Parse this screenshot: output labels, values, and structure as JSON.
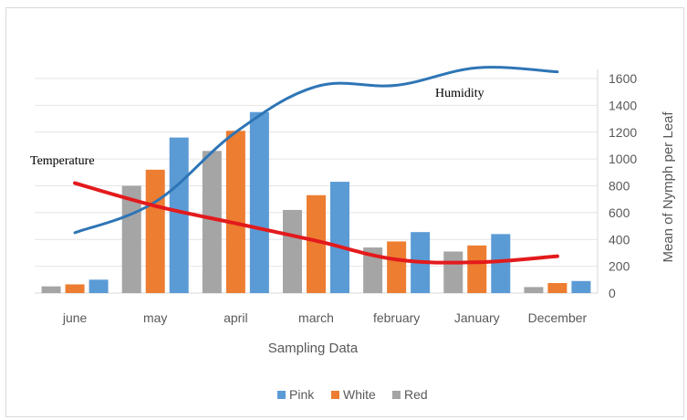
{
  "chart_data": {
    "type": "bar",
    "categories": [
      "june",
      "may",
      "april",
      "march",
      "february",
      "January",
      "December"
    ],
    "series": [
      {
        "name": "Red",
        "color": "#a5a5a5",
        "values": [
          50,
          800,
          1060,
          620,
          340,
          310,
          45
        ]
      },
      {
        "name": "White",
        "color": "#ed7d31",
        "values": [
          65,
          920,
          1210,
          730,
          385,
          355,
          75
        ]
      },
      {
        "name": "Pink",
        "color": "#5b9bd5",
        "values": [
          100,
          1160,
          1350,
          830,
          455,
          440,
          90
        ]
      }
    ],
    "lines": [
      {
        "label": "Humidity",
        "color": "#2e75b6",
        "values": [
          450,
          680,
          1200,
          1540,
          1550,
          1680,
          1650
        ]
      },
      {
        "label": "Temperature",
        "color": "#e31a1c",
        "values": [
          820,
          650,
          520,
          390,
          250,
          230,
          275
        ]
      }
    ],
    "xlabel": "Sampling Data",
    "ylabel": "Mean of Nymph per Leaf",
    "ylim": [
      0,
      1600
    ],
    "yticks": [
      0,
      200,
      400,
      600,
      800,
      1000,
      1200,
      1400,
      1600
    ],
    "legend": [
      {
        "name": "Pink",
        "color": "#5b9bd5"
      },
      {
        "name": "White",
        "color": "#ed7d31"
      },
      {
        "name": "Red",
        "color": "#a5a5a5"
      }
    ],
    "legend_position": "bottom",
    "y_axis_side": "right",
    "grid": true
  }
}
